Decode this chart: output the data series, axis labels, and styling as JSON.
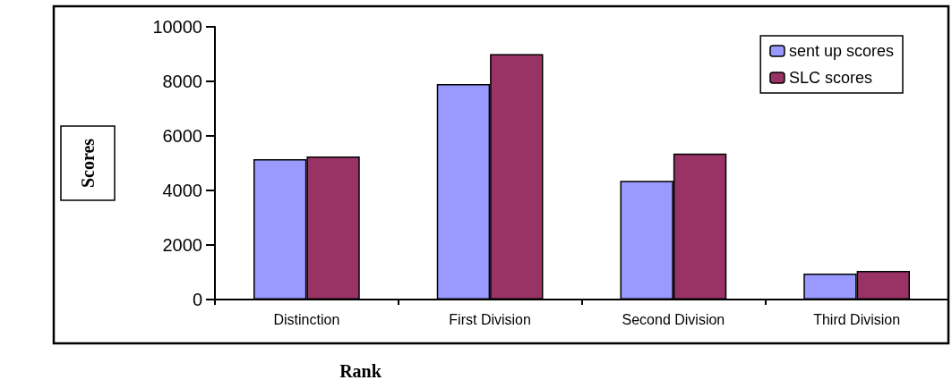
{
  "chart_data": {
    "type": "bar",
    "xlabel": "Rank",
    "ylabel": "Scores",
    "categories": [
      "Distinction",
      "First Division",
      "Second Division",
      "Third Division"
    ],
    "series": [
      {
        "name": "sent up scores",
        "color": "#9999ff",
        "values": [
          5150,
          7900,
          4350,
          950
        ]
      },
      {
        "name": "SLC scores",
        "color": "#993366",
        "values": [
          5250,
          9000,
          5350,
          1050
        ]
      }
    ],
    "ylim": [
      0,
      10000
    ],
    "yticks": [
      0,
      2000,
      4000,
      6000,
      8000,
      10000
    ],
    "grid": false,
    "legend": "top right"
  }
}
